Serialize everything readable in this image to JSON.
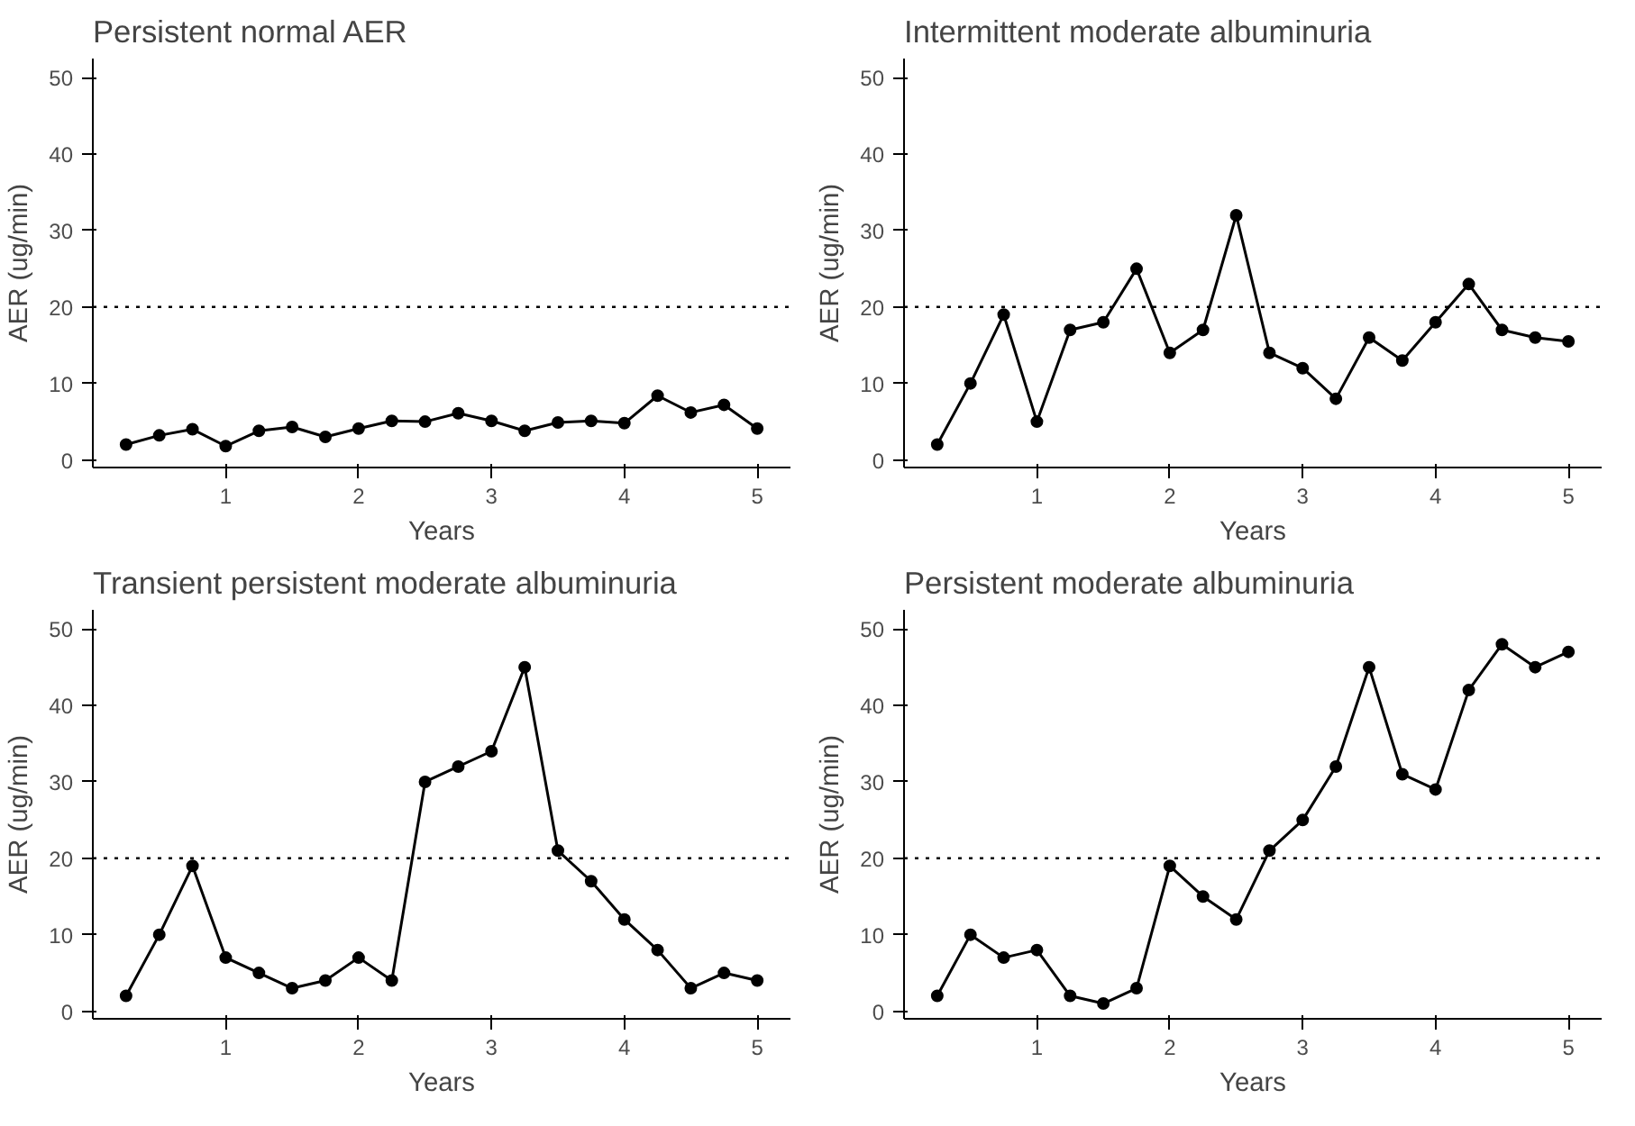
{
  "chart_data": [
    {
      "type": "line",
      "title": "Persistent normal AER",
      "xlabel": "Years",
      "ylabel": "AER (ug/min)",
      "x": [
        0.25,
        0.5,
        0.75,
        1,
        1.25,
        1.5,
        1.75,
        2,
        2.25,
        2.5,
        2.75,
        3,
        3.25,
        3.5,
        3.75,
        4,
        4.25,
        4.5,
        4.75,
        5
      ],
      "series": [
        {
          "color": "#000000",
          "values": [
            2,
            3.2,
            4,
            1.8,
            3.8,
            4.3,
            3,
            4.1,
            5.1,
            5,
            6.1,
            5.1,
            3.8,
            4.9,
            5.1,
            4.8,
            8.4,
            6.2,
            7.2,
            4.1
          ]
        }
      ],
      "xlim": [
        0,
        5.25
      ],
      "ylim": [
        -1,
        52.5
      ],
      "xticks": [
        1,
        2,
        3,
        4,
        5
      ],
      "yticks": [
        0,
        10,
        20,
        30,
        40,
        50
      ],
      "marker": "circle",
      "line_style": "solid",
      "grid": false,
      "ref_lines": [
        {
          "axis": "y",
          "value": 20,
          "line_style": "dotted",
          "color": "#000000"
        }
      ]
    },
    {
      "type": "line",
      "title": "Intermittent moderate albuminuria",
      "xlabel": "Years",
      "ylabel": "AER (ug/min)",
      "x": [
        0.25,
        0.5,
        0.75,
        1,
        1.25,
        1.5,
        1.75,
        2,
        2.25,
        2.5,
        2.75,
        3,
        3.25,
        3.5,
        3.75,
        4,
        4.25,
        4.5,
        4.75,
        5
      ],
      "series": [
        {
          "color": "#000000",
          "values": [
            2,
            10,
            19,
            5,
            17,
            18,
            25,
            14,
            17,
            32,
            14,
            12,
            8,
            16,
            13,
            18,
            23,
            17,
            16,
            15.5
          ]
        }
      ],
      "xlim": [
        0,
        5.25
      ],
      "ylim": [
        -1,
        52.5
      ],
      "xticks": [
        1,
        2,
        3,
        4,
        5
      ],
      "yticks": [
        0,
        10,
        20,
        30,
        40,
        50
      ],
      "marker": "circle",
      "line_style": "solid",
      "grid": false,
      "ref_lines": [
        {
          "axis": "y",
          "value": 20,
          "line_style": "dotted",
          "color": "#000000"
        }
      ]
    },
    {
      "type": "line",
      "title": "Transient persistent moderate albuminuria",
      "xlabel": "Years",
      "ylabel": "AER (ug/min)",
      "x": [
        0.25,
        0.5,
        0.75,
        1,
        1.25,
        1.5,
        1.75,
        2,
        2.25,
        2.5,
        2.75,
        3,
        3.25,
        3.5,
        3.75,
        4,
        4.25,
        4.5,
        4.75,
        5
      ],
      "series": [
        {
          "color": "#000000",
          "values": [
            2,
            10,
            19,
            7,
            5,
            3,
            4,
            7,
            4,
            30,
            32,
            34,
            45,
            21,
            17,
            12,
            8,
            3,
            5,
            4
          ]
        }
      ],
      "xlim": [
        0,
        5.25
      ],
      "ylim": [
        -1,
        52.5
      ],
      "xticks": [
        1,
        2,
        3,
        4,
        5
      ],
      "yticks": [
        0,
        10,
        20,
        30,
        40,
        50
      ],
      "marker": "circle",
      "line_style": "solid",
      "grid": false,
      "ref_lines": [
        {
          "axis": "y",
          "value": 20,
          "line_style": "dotted",
          "color": "#000000"
        }
      ]
    },
    {
      "type": "line",
      "title": "Persistent moderate albuminuria",
      "xlabel": "Years",
      "ylabel": "AER (ug/min)",
      "x": [
        0.25,
        0.5,
        0.75,
        1,
        1.25,
        1.5,
        1.75,
        2,
        2.25,
        2.5,
        2.75,
        3,
        3.25,
        3.5,
        3.75,
        4,
        4.25,
        4.5,
        4.75,
        5
      ],
      "series": [
        {
          "color": "#000000",
          "values": [
            2,
            10,
            7,
            8,
            2,
            1,
            3,
            19,
            15,
            12,
            21,
            25,
            32,
            45,
            31,
            29,
            42,
            48,
            45,
            47
          ]
        }
      ],
      "xlim": [
        0,
        5.25
      ],
      "ylim": [
        -1,
        52.5
      ],
      "xticks": [
        1,
        2,
        3,
        4,
        5
      ],
      "yticks": [
        0,
        10,
        20,
        30,
        40,
        50
      ],
      "marker": "circle",
      "line_style": "solid",
      "grid": false,
      "ref_lines": [
        {
          "axis": "y",
          "value": 20,
          "line_style": "dotted",
          "color": "#000000"
        }
      ]
    }
  ]
}
